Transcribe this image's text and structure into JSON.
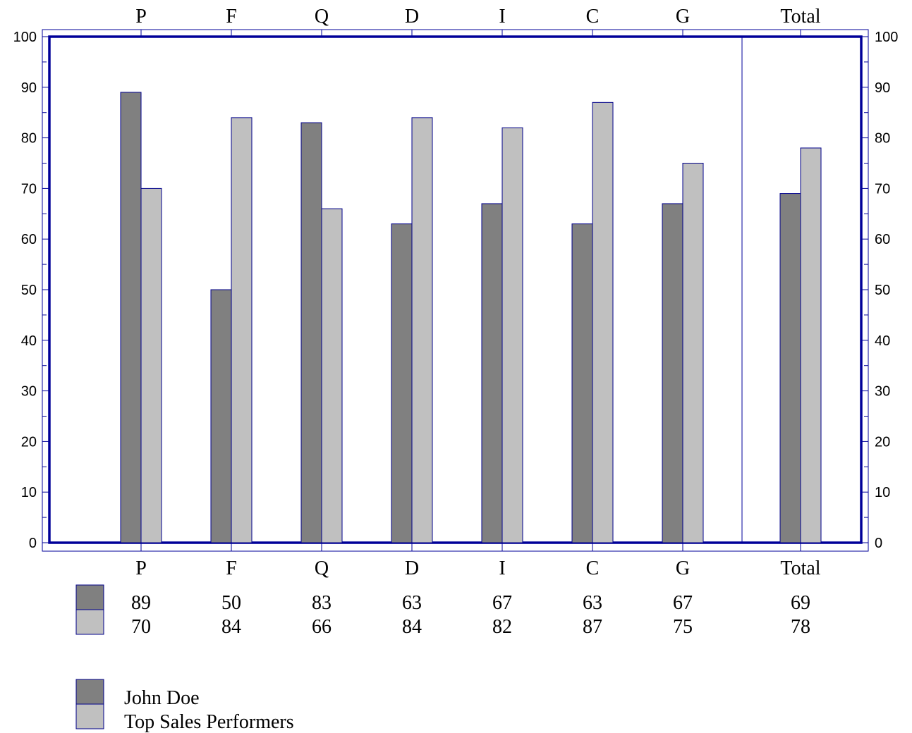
{
  "chart_data": {
    "type": "bar",
    "categories": [
      "P",
      "F",
      "Q",
      "D",
      "I",
      "C",
      "G",
      "Total"
    ],
    "series": [
      {
        "name": "John Doe",
        "values": [
          89,
          50,
          83,
          63,
          67,
          63,
          67,
          69
        ],
        "color": "#808080"
      },
      {
        "name": "Top Sales Performers",
        "values": [
          70,
          84,
          66,
          84,
          82,
          87,
          75,
          78
        ],
        "color": "#c0c0c0"
      }
    ],
    "ylim": [
      0,
      100
    ],
    "yticks": [
      0,
      10,
      20,
      30,
      40,
      50,
      60,
      70,
      80,
      90,
      100
    ],
    "title": "",
    "xlabel": "",
    "ylabel": "",
    "grid": false,
    "legend_position": "bottom-left",
    "data_table": true,
    "colors": {
      "axis": "#000099",
      "bar_outline": "#00008b"
    }
  }
}
